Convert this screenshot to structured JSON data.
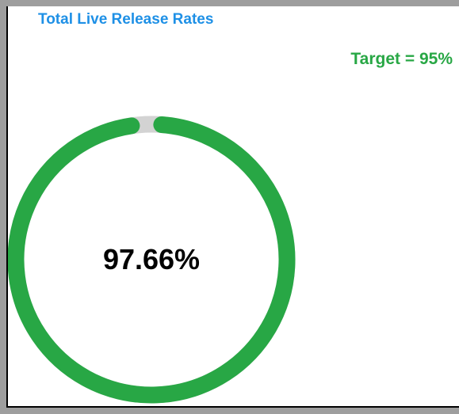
{
  "panel": {
    "title": "Total Live Release Rates",
    "target_label": "Target = 95%"
  },
  "gauge": {
    "value_label": "97.66%",
    "value_fraction": 0.9766,
    "colors": {
      "fill": "#28a745",
      "track": "#d3d3d3",
      "title": "#1e90e6",
      "target": "#28a745"
    }
  }
}
